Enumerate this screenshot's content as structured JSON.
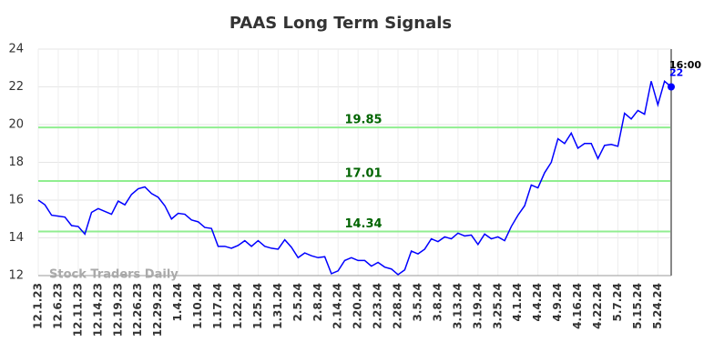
{
  "chart_data": {
    "type": "line",
    "title": "PAAS Long Term Signals",
    "categories": [
      "12.1.23",
      null,
      null,
      "12.6.23",
      null,
      null,
      "12.11.23",
      null,
      null,
      "12.14.23",
      null,
      null,
      "12.19.23",
      null,
      null,
      "12.26.23",
      null,
      null,
      "12.29.23",
      null,
      null,
      "1.4.24",
      null,
      null,
      "1.10.24",
      null,
      null,
      "1.17.24",
      null,
      null,
      "1.22.24",
      null,
      null,
      "1.25.24",
      null,
      null,
      "1.31.24",
      null,
      null,
      "2.5.24",
      null,
      null,
      "2.8.24",
      null,
      null,
      "2.14.24",
      null,
      null,
      "2.20.24",
      null,
      null,
      "2.23.24",
      null,
      null,
      "2.28.24",
      null,
      null,
      "3.5.24",
      null,
      null,
      "3.8.24",
      null,
      null,
      "3.13.24",
      null,
      null,
      "3.19.24",
      null,
      null,
      "3.25.24",
      null,
      null,
      "4.1.24",
      null,
      null,
      "4.4.24",
      null,
      null,
      "4.9.24",
      null,
      null,
      "4.16.24",
      null,
      null,
      "4.22.24",
      null,
      null,
      "5.7.24",
      null,
      null,
      "5.15.24",
      null,
      null,
      "5.24.24",
      null,
      null
    ],
    "series": [
      {
        "color": "#0000ff",
        "values": [
          16.0,
          15.75,
          15.2,
          15.15,
          15.1,
          14.65,
          14.6,
          14.2,
          15.35,
          15.55,
          15.4,
          15.25,
          15.95,
          15.75,
          16.3,
          16.6,
          16.7,
          16.35,
          16.15,
          15.7,
          15.0,
          15.3,
          15.25,
          14.95,
          14.85,
          14.55,
          14.5,
          13.55,
          13.55,
          13.45,
          13.6,
          13.85,
          13.55,
          13.85,
          13.55,
          13.45,
          13.4,
          13.9,
          13.5,
          12.95,
          13.2,
          13.05,
          12.95,
          13.0,
          12.1,
          12.25,
          12.8,
          12.95,
          12.8,
          12.8,
          12.5,
          12.7,
          12.45,
          12.35,
          12.05,
          12.3,
          13.3,
          13.15,
          13.4,
          13.95,
          13.8,
          14.05,
          13.95,
          14.25,
          14.1,
          14.15,
          13.65,
          14.2,
          13.95,
          14.05,
          13.85,
          14.6,
          15.2,
          15.7,
          16.8,
          16.65,
          17.45,
          18.0,
          19.25,
          19.0,
          19.55,
          18.75,
          19.0,
          19.0,
          18.2,
          18.9,
          18.95,
          18.85,
          20.6,
          20.3,
          20.75,
          20.55,
          22.3,
          21.05,
          22.3,
          22
        ]
      }
    ],
    "ylim": [
      12,
      24
    ],
    "yticks": [
      12,
      14,
      16,
      18,
      20,
      22,
      24
    ],
    "grid": true,
    "hlines": [
      {
        "value": 19.85,
        "color": "#90ee90"
      },
      {
        "value": 17.01,
        "color": "#90ee90"
      },
      {
        "value": 14.34,
        "color": "#90ee90"
      }
    ],
    "end_time": "16:00",
    "watermark": "Stock Traders Daily"
  }
}
